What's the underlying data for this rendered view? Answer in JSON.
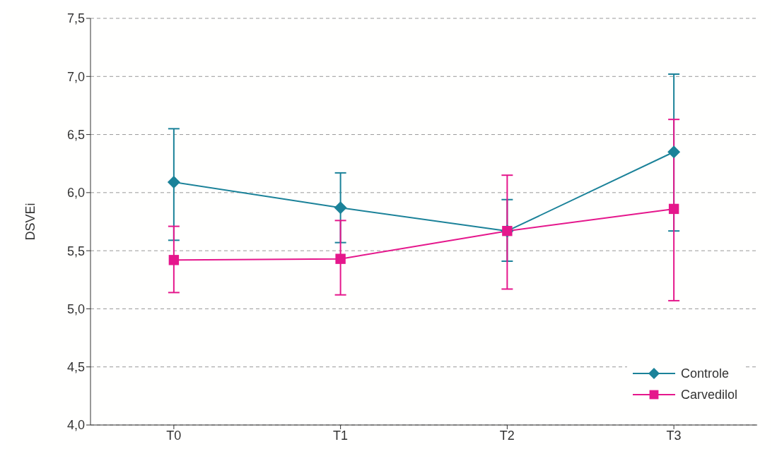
{
  "chart_data": {
    "type": "line",
    "ylabel": "DSVEi",
    "categories": [
      "T0",
      "T1",
      "T2",
      "T3"
    ],
    "series": [
      {
        "name": "Controle",
        "color": "#1b8299",
        "marker": "diamond",
        "values": [
          6.09,
          5.87,
          5.67,
          6.35
        ],
        "errors": [
          [
            5.59,
            6.55
          ],
          [
            5.57,
            6.17
          ],
          [
            5.41,
            5.94
          ],
          [
            5.67,
            7.02
          ]
        ]
      },
      {
        "name": "Carvedilol",
        "color": "#e5178c",
        "marker": "square",
        "values": [
          5.42,
          5.43,
          5.67,
          5.86
        ],
        "errors": [
          [
            5.14,
            5.71
          ],
          [
            5.12,
            5.76
          ],
          [
            5.17,
            6.15
          ],
          [
            5.07,
            6.63
          ]
        ]
      }
    ],
    "ylim": [
      4.0,
      7.5
    ],
    "yticks": [
      {
        "value": 4.0,
        "label": "4,0"
      },
      {
        "value": 4.5,
        "label": "4,5"
      },
      {
        "value": 5.0,
        "label": "5,0"
      },
      {
        "value": 5.5,
        "label": "5,5"
      },
      {
        "value": 6.0,
        "label": "6,0"
      },
      {
        "value": 6.5,
        "label": "6,5"
      },
      {
        "value": 7.0,
        "label": "7,0"
      },
      {
        "value": 7.5,
        "label": "7,5"
      }
    ],
    "grid": "y",
    "legend": "bottom right",
    "line_style": "solid"
  }
}
